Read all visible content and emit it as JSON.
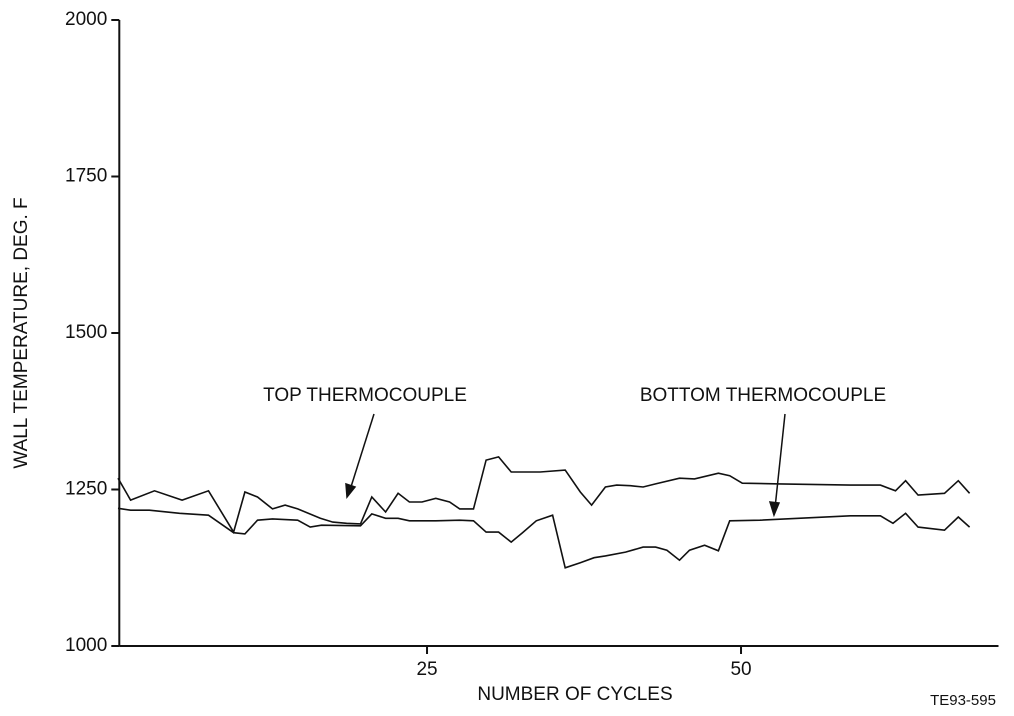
{
  "chart_data": {
    "type": "line",
    "x_label": "NUMBER OF CYCLES",
    "y_label": "WALL TEMPERATURE, DEG. F",
    "figure_id": "TE93-595",
    "xlim": [
      0.5,
      70.5
    ],
    "xticks": [
      25,
      50
    ],
    "ylim": [
      1000,
      2000
    ],
    "yticks": [
      1000,
      1250,
      1500,
      1750,
      2000
    ],
    "annotations": [
      "TOP THERMOCOUPLE",
      "BOTTOM THERMOCOUPLE"
    ],
    "series": [
      {
        "name": "TOP THERMOCOUPLE",
        "color": "#111111",
        "x": [
          0.4,
          1.4,
          3.3,
          5.5,
          7.6,
          9.6,
          10.5,
          11.5,
          12.7,
          13.7,
          14.7,
          16.5,
          17.5,
          18.6,
          19.7,
          20.6,
          21.7,
          22.7,
          23.6,
          24.6,
          25.7,
          26.8,
          27.6,
          28.7,
          29.7,
          30.7,
          31.7,
          34.0,
          36.0,
          37.2,
          38.1,
          39.2,
          40.1,
          41.2,
          42.2,
          43.2,
          45.1,
          46.3,
          48.2,
          49.1,
          50.1,
          53.1,
          58.7,
          61.1,
          62.3,
          63.1,
          64.1,
          66.2,
          67.3,
          68.2
        ],
        "values": [
          1268,
          1233,
          1248,
          1233,
          1248,
          1182,
          1246,
          1238,
          1219,
          1225,
          1219,
          1204,
          1198,
          1196,
          1195,
          1238,
          1214,
          1244,
          1230,
          1230,
          1236,
          1230,
          1219,
          1219,
          1297,
          1302,
          1278,
          1278,
          1281,
          1246,
          1225,
          1254,
          1257,
          1256,
          1254,
          1259,
          1268,
          1267,
          1276,
          1272,
          1260,
          1259,
          1257,
          1257,
          1248,
          1264,
          1241,
          1244,
          1264,
          1244
        ]
      },
      {
        "name": "BOTTOM THERMOCOUPLE",
        "color": "#111111",
        "x": [
          0.4,
          1.4,
          2.9,
          5.3,
          7.6,
          9.6,
          10.5,
          11.5,
          12.7,
          14.7,
          15.7,
          16.6,
          19.7,
          20.6,
          21.7,
          22.7,
          23.6,
          25.7,
          27.6,
          28.7,
          29.7,
          30.7,
          31.7,
          32.6,
          33.7,
          35.0,
          36.0,
          37.2,
          38.3,
          39.2,
          40.8,
          42.2,
          43.2,
          44.1,
          45.1,
          45.9,
          47.1,
          48.2,
          49.1,
          51.5,
          58.7,
          61.1,
          62.1,
          63.1,
          64.1,
          66.2,
          67.3,
          68.2
        ],
        "values": [
          1220,
          1217,
          1217,
          1212,
          1209,
          1181,
          1179,
          1201,
          1203,
          1201,
          1190,
          1193,
          1192,
          1211,
          1204,
          1204,
          1200,
          1200,
          1201,
          1200,
          1182,
          1182,
          1166,
          1181,
          1200,
          1209,
          1125,
          1133,
          1141,
          1144,
          1150,
          1158,
          1158,
          1153,
          1137,
          1153,
          1161,
          1152,
          1200,
          1201,
          1208,
          1208,
          1196,
          1212,
          1190,
          1185,
          1206,
          1190
        ]
      }
    ]
  }
}
